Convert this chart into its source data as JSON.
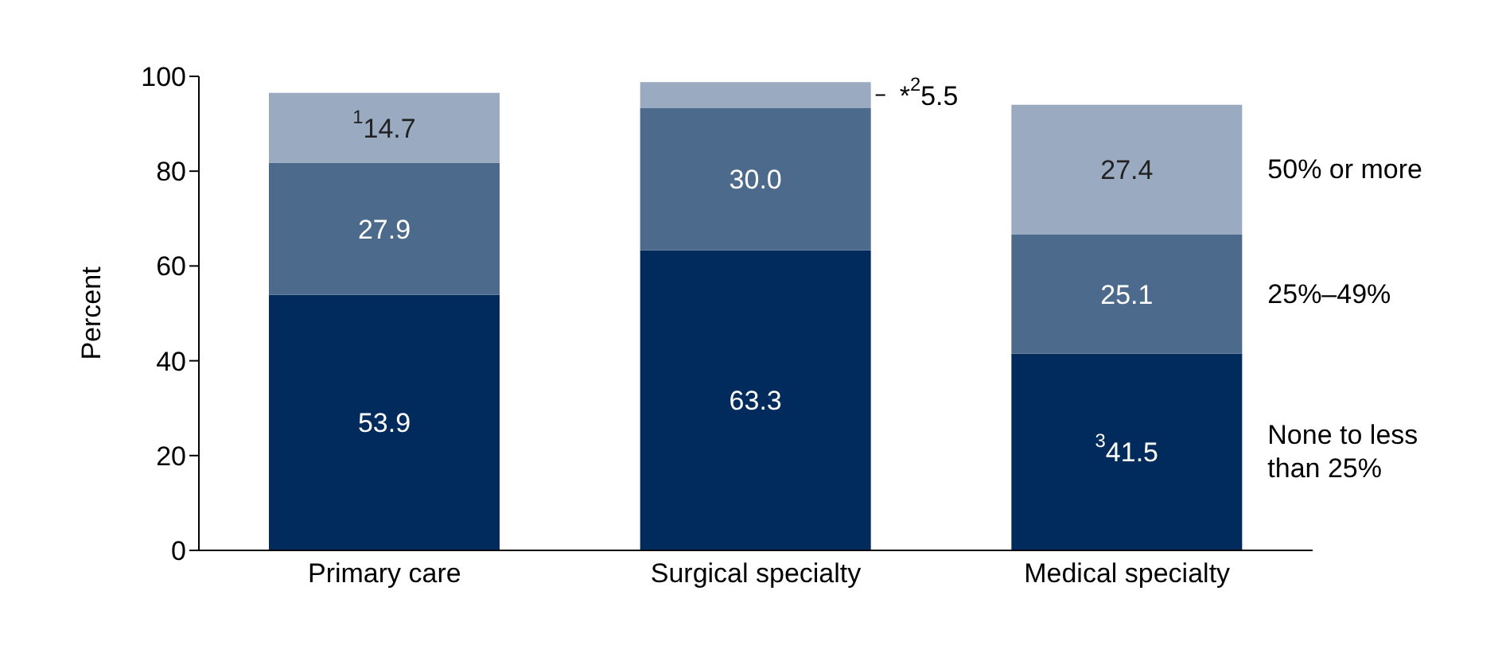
{
  "chart_data": {
    "type": "bar",
    "stacked": true,
    "ylabel": "Percent",
    "categories": [
      "Primary care",
      "Surgical specialty",
      "Medical specialty"
    ],
    "series": [
      {
        "name": "None to less than 25%",
        "color": "#002b5c",
        "values": [
          53.9,
          63.3,
          41.5
        ],
        "value_labels": [
          "53.9",
          "63.3",
          "$^{3}$41.5"
        ]
      },
      {
        "name": "25%–49%",
        "color": "#4b6a8c",
        "values": [
          27.9,
          30.0,
          25.1
        ],
        "value_labels": [
          "27.9",
          "30.0",
          "25.1"
        ]
      },
      {
        "name": "50% or more",
        "color": "#9aaac0",
        "values": [
          14.7,
          5.5,
          27.4
        ],
        "value_labels": [
          "$^{1}$14.7",
          "*$^{2}$5.5",
          "27.4"
        ]
      }
    ],
    "ylim": [
      0,
      100
    ],
    "yticks": [
      0,
      20,
      40,
      60,
      80,
      100
    ],
    "grid": false,
    "legend": "right"
  }
}
